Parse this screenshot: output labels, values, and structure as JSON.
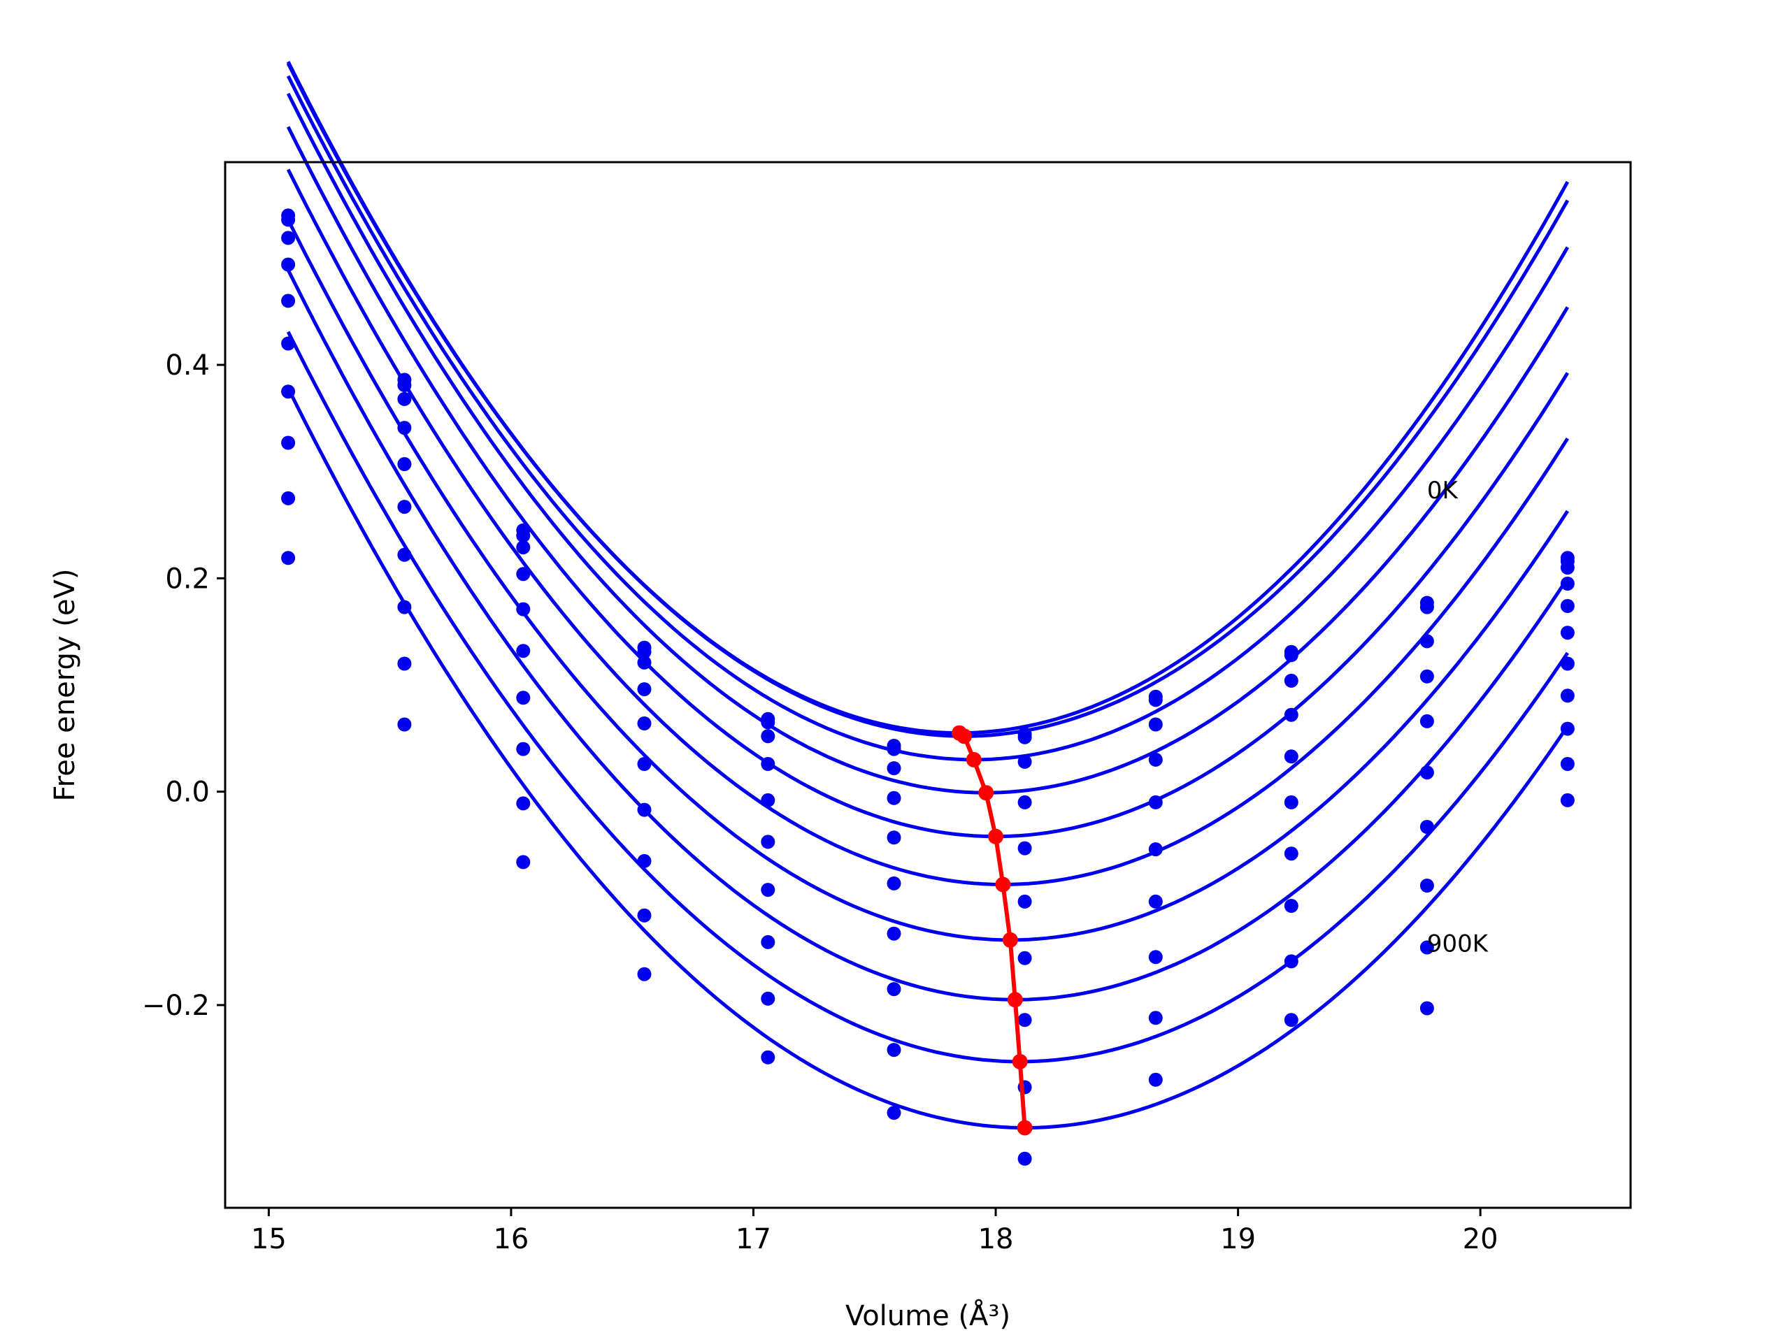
{
  "chart_data": {
    "type": "line",
    "xlabel": "Volume (Å³)",
    "ylabel": "Free energy (eV)",
    "xlim": [
      14.82,
      20.62
    ],
    "ylim": [
      -0.39,
      0.59
    ],
    "x_ticks": [
      15,
      16,
      17,
      18,
      19,
      20
    ],
    "x_tick_labels": [
      "15",
      "16",
      "17",
      "18",
      "19",
      "20"
    ],
    "y_ticks": [
      -0.2,
      0.0,
      0.2,
      0.4
    ],
    "y_tick_labels": [
      "−0.2",
      "0.0",
      "0.2",
      "0.4"
    ],
    "grid": false,
    "colors": {
      "curves": "#0000ee",
      "points": "#0000ee",
      "minima": "#ff0000"
    },
    "annotations": [
      {
        "text": "0K",
        "x": 19.78,
        "y": 0.275
      },
      {
        "text": "900K",
        "x": 19.78,
        "y": -0.15
      }
    ],
    "volumes": [
      15.08,
      15.56,
      16.05,
      16.55,
      17.06,
      17.58,
      18.12,
      18.66,
      19.22,
      19.78,
      20.36
    ],
    "series": [
      {
        "min_volume": 17.85,
        "min_energy": 0.055,
        "curvature": 0.082,
        "values": [
          0.54,
          0.386,
          0.245,
          0.135,
          0.068,
          0.043,
          0.054,
          0.089,
          0.131,
          0.177,
          0.219
        ]
      },
      {
        "min_volume": 17.87,
        "min_energy": 0.052,
        "curvature": 0.081,
        "values": [
          0.536,
          0.381,
          0.24,
          0.131,
          0.065,
          0.04,
          0.051,
          0.086,
          0.128,
          0.173,
          0.216
        ]
      },
      {
        "min_volume": 17.91,
        "min_energy": 0.03,
        "curvature": 0.08,
        "values": [
          0.519,
          0.368,
          0.229,
          0.121,
          0.052,
          0.022,
          0.028,
          0.063,
          0.104,
          0.141,
          0.21
        ]
      },
      {
        "min_volume": 17.96,
        "min_energy": -0.001,
        "curvature": 0.079,
        "values": [
          0.494,
          0.341,
          0.204,
          0.096,
          0.026,
          -0.006,
          -0.01,
          0.03,
          0.072,
          0.108,
          0.195
        ]
      },
      {
        "min_volume": 18.0,
        "min_energy": -0.042,
        "curvature": 0.078,
        "values": [
          0.46,
          0.307,
          0.171,
          0.064,
          -0.008,
          -0.043,
          -0.053,
          -0.01,
          0.033,
          0.066,
          0.174
        ]
      },
      {
        "min_volume": 18.03,
        "min_energy": -0.087,
        "curvature": 0.077,
        "values": [
          0.42,
          0.267,
          0.132,
          0.026,
          -0.047,
          -0.086,
          -0.103,
          -0.054,
          -0.01,
          0.018,
          0.149
        ]
      },
      {
        "min_volume": 18.06,
        "min_energy": -0.139,
        "curvature": 0.076,
        "values": [
          0.375,
          0.222,
          0.088,
          -0.017,
          -0.092,
          -0.133,
          -0.156,
          -0.103,
          -0.058,
          -0.033,
          0.12
        ]
      },
      {
        "min_volume": 18.08,
        "min_energy": -0.195,
        "curvature": 0.076,
        "values": [
          0.327,
          0.173,
          0.04,
          -0.065,
          -0.141,
          -0.185,
          -0.214,
          -0.155,
          -0.107,
          -0.088,
          0.09
        ]
      },
      {
        "min_volume": 18.1,
        "min_energy": -0.253,
        "curvature": 0.075,
        "values": [
          0.275,
          0.12,
          -0.011,
          -0.116,
          -0.194,
          -0.242,
          -0.277,
          -0.212,
          -0.159,
          -0.146,
          0.059
        ]
      },
      {
        "min_volume": 18.12,
        "min_energy": -0.315,
        "curvature": 0.075,
        "values": [
          0.219,
          0.063,
          -0.066,
          -0.171,
          -0.249,
          -0.301,
          -0.344,
          -0.27,
          -0.214,
          -0.203,
          0.026
        ]
      },
      {
        "values": [
          null,
          null,
          null,
          null,
          null,
          null,
          null,
          null,
          null,
          null,
          -0.008
        ]
      }
    ]
  }
}
